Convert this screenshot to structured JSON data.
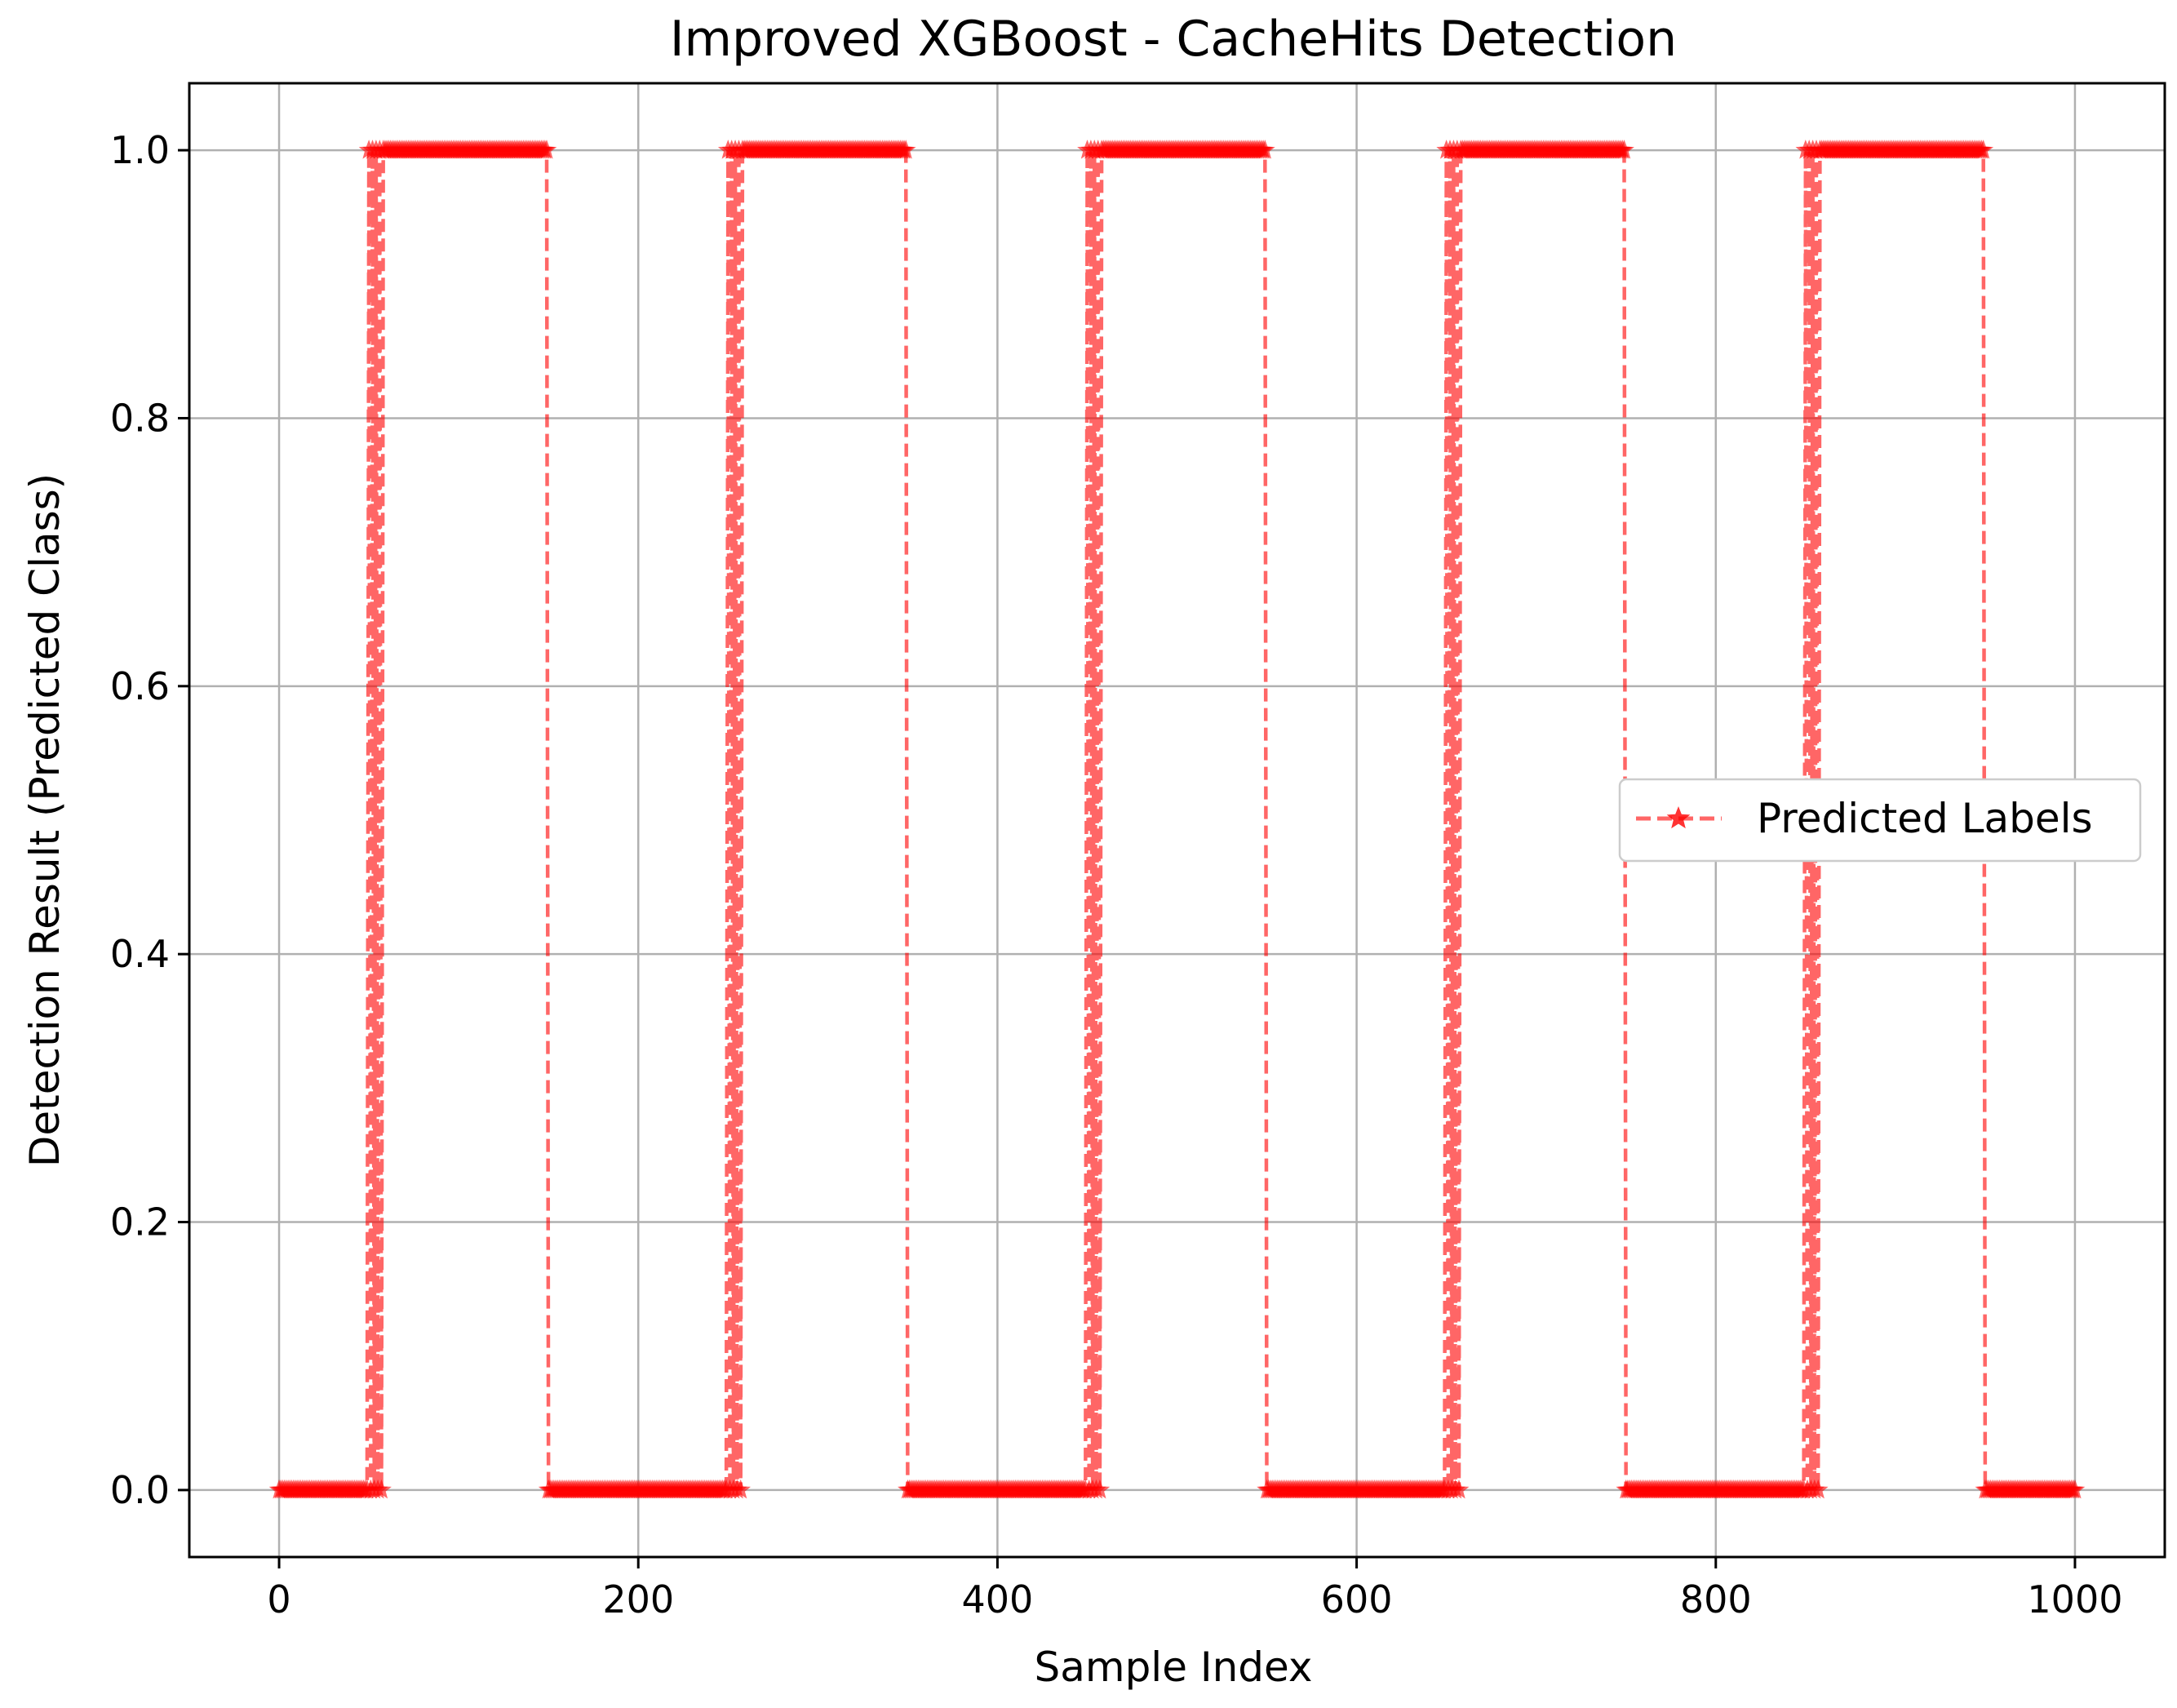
{
  "chart_data": {
    "type": "line",
    "title": "Improved XGBoost - CacheHits Detection",
    "xlabel": "Sample Index",
    "ylabel": "Detection Result (Predicted Class)",
    "xlim": [
      -50,
      1050
    ],
    "ylim": [
      -0.05,
      1.05
    ],
    "x_ticks": [
      0,
      200,
      400,
      600,
      800,
      1000
    ],
    "x_tick_labels": [
      "0",
      "200",
      "400",
      "600",
      "800",
      "1000"
    ],
    "y_ticks": [
      0.0,
      0.2,
      0.4,
      0.6,
      0.8,
      1.0
    ],
    "y_tick_labels": [
      "0.0",
      "0.2",
      "0.4",
      "0.6",
      "0.8",
      "1.0"
    ],
    "grid": true,
    "legend_position": "center-right",
    "series": [
      {
        "name": "Predicted Labels",
        "color": "#ff0000",
        "line_style": "dashed",
        "marker": "star",
        "alpha": 0.6,
        "x_range": [
          0,
          1000
        ],
        "segments": [
          {
            "start": 0,
            "end": 49,
            "value": 0
          },
          {
            "start": 50,
            "end": 149,
            "value": 1
          },
          {
            "start": 150,
            "end": 249,
            "value": 0
          },
          {
            "start": 250,
            "end": 349,
            "value": 1
          },
          {
            "start": 350,
            "end": 449,
            "value": 0
          },
          {
            "start": 450,
            "end": 549,
            "value": 1
          },
          {
            "start": 550,
            "end": 649,
            "value": 0
          },
          {
            "start": 650,
            "end": 749,
            "value": 1
          },
          {
            "start": 750,
            "end": 849,
            "value": 0
          },
          {
            "start": 850,
            "end": 949,
            "value": 1
          },
          {
            "start": 950,
            "end": 1000,
            "value": 0
          }
        ],
        "flip_regions": [
          [
            50,
            57
          ],
          [
            250,
            257
          ],
          [
            450,
            457
          ],
          [
            650,
            657
          ],
          [
            850,
            857
          ]
        ]
      }
    ]
  }
}
